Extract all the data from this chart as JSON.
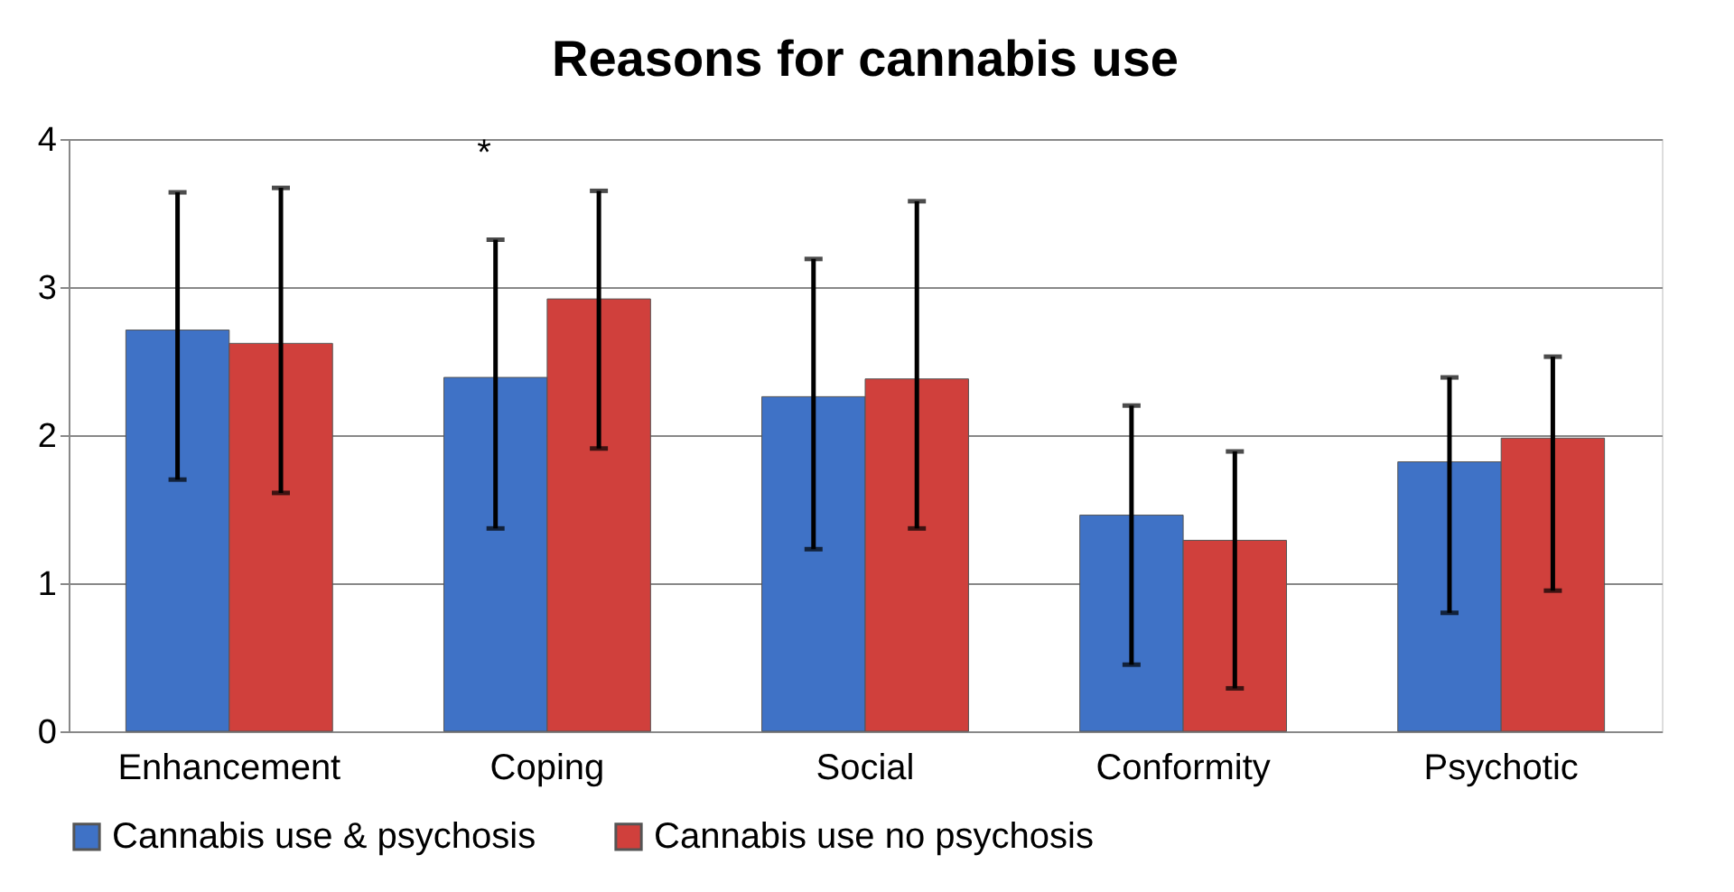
{
  "chart_data": {
    "type": "bar",
    "title": "Reasons for cannabis use",
    "categories": [
      "Enhancement",
      "Coping",
      "Social",
      "Conformity",
      "Psychotic"
    ],
    "series": [
      {
        "name": "Cannabis use & psychosis",
        "color": "#3f72c6",
        "values": [
          2.71,
          2.39,
          2.26,
          1.46,
          1.82
        ],
        "errors": [
          [
            1.7,
            3.64
          ],
          [
            1.37,
            3.32
          ],
          [
            1.23,
            3.19
          ],
          [
            0.45,
            2.2
          ],
          [
            0.8,
            2.39
          ]
        ]
      },
      {
        "name": "Cannabis use no psychosis",
        "color": "#d0403c",
        "values": [
          2.62,
          2.92,
          2.38,
          1.29,
          1.98
        ],
        "errors": [
          [
            1.61,
            3.67
          ],
          [
            1.91,
            3.65
          ],
          [
            1.37,
            3.58
          ],
          [
            0.29,
            1.89
          ],
          [
            0.95,
            2.53
          ]
        ]
      }
    ],
    "annotations": [
      "*"
    ],
    "ylim": [
      0,
      4
    ],
    "yticks": [
      0,
      1,
      2,
      3,
      4
    ],
    "grid": "y",
    "legend": "bottom"
  }
}
